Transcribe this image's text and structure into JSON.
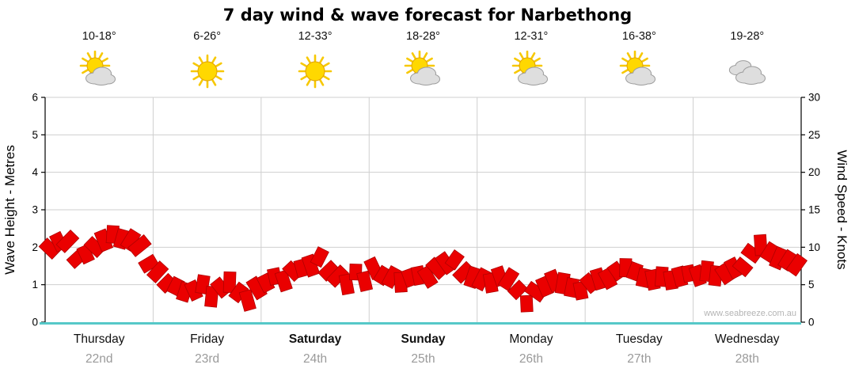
{
  "title": "7 day wind & wave forecast for Narbethong",
  "watermark": "www.seabreeze.com.au",
  "colors": {
    "band_fill": "#ea0000",
    "band_stroke": "#b00000",
    "grid": "#cfcfcf",
    "axis": "#000000",
    "baseline": "#56c8c8",
    "sun": "#ffd800",
    "sun_ray": "#f7c800",
    "cloud_fill": "#dedede",
    "cloud_stroke": "#9c9c9c"
  },
  "axes": {
    "left_label": "Wave Height - Metres",
    "right_label": "Wind Speed - Knots",
    "left_ticks": [
      0,
      1,
      2,
      3,
      4,
      5,
      6
    ],
    "right_ticks": [
      0,
      5,
      10,
      15,
      20,
      25,
      30
    ]
  },
  "days": [
    {
      "name": "Thursday",
      "date": "22nd",
      "temp": "10-18°",
      "icon": "sun-cloud",
      "weekend": false
    },
    {
      "name": "Friday",
      "date": "23rd",
      "temp": "6-26°",
      "icon": "sun",
      "weekend": false
    },
    {
      "name": "Saturday",
      "date": "24th",
      "temp": "12-33°",
      "icon": "sun",
      "weekend": true
    },
    {
      "name": "Sunday",
      "date": "25th",
      "temp": "18-28°",
      "icon": "sun-cloud",
      "weekend": true
    },
    {
      "name": "Monday",
      "date": "26th",
      "temp": "12-31°",
      "icon": "sun-cloud",
      "weekend": false
    },
    {
      "name": "Tuesday",
      "date": "27th",
      "temp": "16-38°",
      "icon": "sun-cloud",
      "weekend": false
    },
    {
      "name": "Wednesday",
      "date": "28th",
      "temp": "19-28°",
      "icon": "cloud",
      "weekend": false
    }
  ],
  "chart_data": {
    "type": "area",
    "title": "7 day wind & wave forecast for Narbethong",
    "x_categories": [
      "Thursday 22nd",
      "Friday 23rd",
      "Saturday 24th",
      "Sunday 25th",
      "Monday 26th",
      "Tuesday 27th",
      "Wednesday 28th"
    ],
    "samples_per_day": 12,
    "ylabel_left": "Wave Height - Metres",
    "ylabel_right": "Wind Speed - Knots",
    "ylim_left": [
      0,
      6
    ],
    "ylim_right": [
      0,
      30
    ],
    "grid": true,
    "series": [
      {
        "name": "Wind Speed - Knots",
        "values": [
          9.5,
          11,
          10.5,
          8.5,
          9,
          10,
          11,
          11.5,
          11,
          11,
          10.5,
          8,
          6.5,
          5.5,
          5,
          4,
          4.5,
          5,
          3.5,
          4.5,
          5.5,
          4,
          3,
          4.5,
          5,
          6,
          5.5,
          6.5,
          7,
          7.5,
          9,
          7,
          6,
          5,
          6.5,
          5.5,
          7.5,
          6.5,
          6,
          5.5,
          6,
          6.5,
          6,
          7,
          8,
          8.5,
          6.5,
          6,
          5.5,
          5,
          6,
          5.5,
          4.5,
          2.5,
          4,
          5,
          5.5,
          5,
          4.5,
          4,
          5,
          5.5,
          6,
          6.5,
          7,
          6.5,
          6,
          5.5,
          6,
          5.5,
          6,
          6.5,
          6,
          6.5,
          6,
          6.5,
          7,
          7.5,
          9,
          10,
          9.5,
          8.5,
          8,
          7.5
        ]
      }
    ]
  }
}
